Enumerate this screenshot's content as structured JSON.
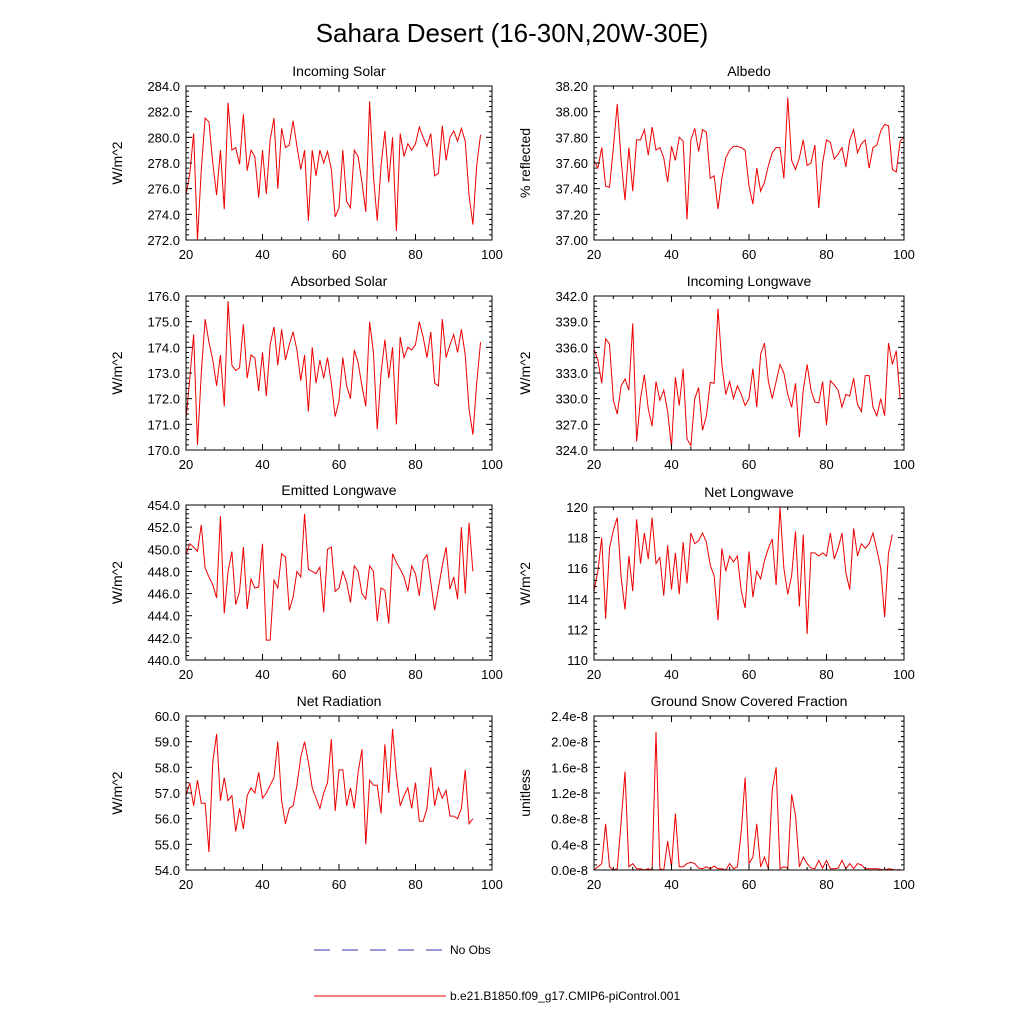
{
  "figure": {
    "title": "Sahara Desert (16-30N,20W-30E)"
  },
  "legend": {
    "entries": [
      {
        "label": "No Obs",
        "color": "#3333aa",
        "dash": "long"
      },
      {
        "label": "b.e21.B1850.f09_g17.CMIP6-piControl.001",
        "color": "#ee0000",
        "dash": "solid"
      }
    ]
  },
  "chart_data": [
    {
      "type": "line",
      "title": "Incoming Solar",
      "ylabel": "W/m^2",
      "xlim": [
        20,
        100
      ],
      "ylim": [
        272,
        284
      ],
      "xticks": [
        20,
        40,
        60,
        80,
        100
      ],
      "yticks": [
        "272.0",
        "274.0",
        "276.0",
        "278.0",
        "280.0",
        "282.0",
        "284.0"
      ],
      "ytick_values": [
        272,
        274,
        276,
        278,
        280,
        282,
        284
      ],
      "x_start": 20,
      "x_step": 1,
      "series": [
        {
          "color": "#ee0000",
          "values": [
            275.5,
            277.2,
            280.3,
            272.0,
            277.5,
            281.5,
            281.2,
            278.0,
            275.5,
            279.0,
            274.4,
            282.7,
            279.0,
            279.2,
            277.9,
            281.8,
            277.4,
            279.0,
            278.5,
            275.3,
            279.0,
            275.6,
            279.8,
            281.5,
            276.0,
            280.7,
            279.2,
            279.4,
            281.3,
            279.3,
            277.5,
            279.0,
            273.5,
            279.0,
            277.0,
            279.0,
            278.0,
            278.9,
            277.5,
            273.8,
            274.5,
            279.0,
            275.0,
            274.5,
            279.0,
            278.5,
            276.5,
            274.2,
            282.8,
            277.0,
            273.5,
            277.8,
            280.5,
            276.5,
            280.0,
            272.7,
            280.3,
            278.5,
            279.5,
            279.0,
            279.5,
            280.8,
            280.0,
            279.3,
            280.3,
            277.0,
            277.2,
            280.9,
            278.2,
            280.0,
            280.5,
            279.7,
            280.7,
            279.7,
            275.5,
            273.2,
            277.8,
            280.2
          ]
        }
      ]
    },
    {
      "type": "line",
      "title": "Albedo",
      "ylabel": "% reflected",
      "xlim": [
        20,
        100
      ],
      "ylim": [
        37.0,
        38.2
      ],
      "xticks": [
        20,
        40,
        60,
        80,
        100
      ],
      "yticks": [
        "37.00",
        "37.20",
        "37.40",
        "37.60",
        "37.80",
        "38.00",
        "38.20"
      ],
      "ytick_values": [
        37.0,
        37.2,
        37.4,
        37.6,
        37.8,
        38.0,
        38.2
      ],
      "x_start": 20,
      "x_step": 1,
      "series": [
        {
          "color": "#ee0000",
          "values": [
            37.62,
            37.56,
            37.72,
            37.42,
            37.41,
            37.72,
            38.06,
            37.62,
            37.31,
            37.72,
            37.38,
            37.78,
            37.78,
            37.86,
            37.66,
            37.88,
            37.7,
            37.72,
            37.64,
            37.45,
            37.73,
            37.62,
            37.8,
            37.77,
            37.16,
            37.78,
            37.87,
            37.69,
            37.86,
            37.84,
            37.48,
            37.5,
            37.24,
            37.48,
            37.64,
            37.7,
            37.73,
            37.73,
            37.72,
            37.7,
            37.42,
            37.28,
            37.56,
            37.38,
            37.45,
            37.58,
            37.68,
            37.72,
            37.72,
            37.48,
            38.11,
            37.62,
            37.55,
            37.64,
            37.78,
            37.58,
            37.6,
            37.74,
            37.25,
            37.6,
            37.78,
            37.76,
            37.63,
            37.67,
            37.72,
            37.57,
            37.78,
            37.86,
            37.68,
            37.75,
            37.78,
            37.56,
            37.72,
            37.74,
            37.85,
            37.9,
            37.89,
            37.55,
            37.53,
            37.77,
            37.8
          ]
        }
      ]
    },
    {
      "type": "line",
      "title": "Absorbed Solar",
      "ylabel": "W/m^2",
      "xlim": [
        20,
        100
      ],
      "ylim": [
        170,
        176
      ],
      "xticks": [
        20,
        40,
        60,
        80,
        100
      ],
      "yticks": [
        "170.0",
        "171.0",
        "172.0",
        "173.0",
        "174.0",
        "175.0",
        "176.0"
      ],
      "ytick_values": [
        170,
        171,
        172,
        173,
        174,
        175,
        176
      ],
      "x_start": 20,
      "x_step": 1,
      "series": [
        {
          "color": "#ee0000",
          "values": [
            171.2,
            172.8,
            174.5,
            170.2,
            173.0,
            175.1,
            174.2,
            173.5,
            172.5,
            173.7,
            171.7,
            175.8,
            173.3,
            173.1,
            173.2,
            174.9,
            172.8,
            173.7,
            173.6,
            172.3,
            173.8,
            172.1,
            174.1,
            174.8,
            173.3,
            174.7,
            173.5,
            174.1,
            174.6,
            173.9,
            172.7,
            173.7,
            171.5,
            174.0,
            172.6,
            173.5,
            172.8,
            173.6,
            172.6,
            171.3,
            171.9,
            173.6,
            172.5,
            172.0,
            173.9,
            173.4,
            172.5,
            171.7,
            175.0,
            173.8,
            170.8,
            173.0,
            174.3,
            172.8,
            174.0,
            171.0,
            174.4,
            173.6,
            174.0,
            173.9,
            174.1,
            175.0,
            174.4,
            173.6,
            174.6,
            172.6,
            172.5,
            175.1,
            173.6,
            174.1,
            174.5,
            173.8,
            174.7,
            173.7,
            171.6,
            170.6,
            172.6,
            174.2
          ]
        }
      ]
    },
    {
      "type": "line",
      "title": "Incoming Longwave",
      "ylabel": "W/m^2",
      "xlim": [
        20,
        100
      ],
      "ylim": [
        324,
        342
      ],
      "xticks": [
        20,
        40,
        60,
        80,
        100
      ],
      "yticks": [
        "324.0",
        "327.0",
        "330.0",
        "333.0",
        "336.0",
        "339.0",
        "342.0"
      ],
      "ytick_values": [
        324,
        327,
        330,
        333,
        336,
        339,
        342
      ],
      "x_start": 20,
      "x_step": 1,
      "series": [
        {
          "color": "#ee0000",
          "values": [
            335.8,
            334.5,
            331.8,
            337.0,
            336.4,
            329.8,
            328.2,
            331.5,
            332.3,
            331.0,
            338.8,
            325.0,
            330.0,
            332.8,
            328.8,
            326.8,
            332.0,
            329.8,
            331.0,
            328.5,
            324.3,
            332.5,
            329.2,
            333.5,
            325.3,
            324.5,
            330.0,
            331.3,
            326.3,
            328.0,
            331.9,
            331.8,
            340.5,
            334.0,
            330.5,
            332.0,
            330.0,
            331.5,
            330.5,
            329.2,
            330.0,
            333.5,
            329.0,
            335.2,
            336.5,
            332.0,
            330.0,
            332.0,
            334.0,
            333.0,
            330.5,
            329.0,
            331.8,
            325.5,
            331.0,
            334.0,
            331.0,
            329.6,
            329.5,
            332.0,
            326.9,
            332.1,
            331.6,
            331.0,
            329.0,
            330.5,
            330.3,
            332.4,
            329.3,
            328.5,
            332.7,
            332.7,
            329.0,
            328.0,
            330.0,
            328.0,
            336.5,
            334.0,
            335.6,
            330.0
          ]
        }
      ]
    },
    {
      "type": "line",
      "title": "Emitted Longwave",
      "ylabel": "W/m^2",
      "xlim": [
        20,
        100
      ],
      "ylim": [
        440,
        454
      ],
      "xticks": [
        20,
        40,
        60,
        80,
        100
      ],
      "yticks": [
        "440.0",
        "442.0",
        "444.0",
        "446.0",
        "448.0",
        "450.0",
        "452.0",
        "454.0"
      ],
      "ytick_values": [
        440,
        442,
        444,
        446,
        448,
        450,
        452,
        454
      ],
      "x_start": 20,
      "x_step": 1,
      "series": [
        {
          "color": "#ee0000",
          "values": [
            449.5,
            450.5,
            450.2,
            449.8,
            452.2,
            448.3,
            447.5,
            446.8,
            445.6,
            453.0,
            444.2,
            448.0,
            449.8,
            445.0,
            446.2,
            450.2,
            444.6,
            447.3,
            446.5,
            446.6,
            450.5,
            441.8,
            441.8,
            447.2,
            446.5,
            449.6,
            449.3,
            444.5,
            445.7,
            448.0,
            447.5,
            453.2,
            448.2,
            448.0,
            447.8,
            448.4,
            444.3,
            450.0,
            450.2,
            446.2,
            446.5,
            448.0,
            447.0,
            445.2,
            448.5,
            448.0,
            446.0,
            445.5,
            448.5,
            448.0,
            443.5,
            446.5,
            446.3,
            443.3,
            449.6,
            448.8,
            448.2,
            447.5,
            446.2,
            448.5,
            447.8,
            445.8,
            449.0,
            449.5,
            447.0,
            444.5,
            446.5,
            448.5,
            450.2,
            446.4,
            447.5,
            445.5,
            452.0,
            446.0,
            452.4,
            448.0
          ]
        }
      ]
    },
    {
      "type": "line",
      "title": "Net Longwave",
      "ylabel": "W/m^2",
      "xlim": [
        20,
        100
      ],
      "ylim": [
        110,
        120
      ],
      "xticks": [
        20,
        40,
        60,
        80,
        100
      ],
      "yticks": [
        "110",
        "112",
        "114",
        "116",
        "118",
        "120"
      ],
      "ytick_values": [
        110,
        112,
        114,
        116,
        118,
        120
      ],
      "x_start": 20,
      "x_step": 1,
      "series": [
        {
          "color": "#ee0000",
          "values": [
            114.5,
            115.8,
            118.0,
            112.7,
            117.3,
            118.5,
            119.3,
            115.4,
            113.3,
            116.8,
            114.5,
            119.2,
            116.3,
            118.3,
            116.6,
            119.3,
            116.3,
            116.7,
            114.2,
            117.5,
            114.6,
            117.0,
            114.3,
            117.7,
            115.0,
            118.3,
            117.6,
            117.8,
            118.3,
            117.7,
            116.2,
            115.5,
            112.6,
            117.3,
            115.8,
            116.8,
            116.4,
            116.8,
            114.5,
            113.4,
            117.1,
            114.1,
            115.8,
            115.3,
            116.5,
            117.3,
            117.9,
            114.9,
            120.0,
            116.0,
            114.3,
            115.5,
            118.4,
            113.5,
            118.2,
            111.7,
            117.0,
            117.0,
            116.8,
            117.0,
            116.8,
            118.3,
            116.6,
            117.3,
            118.3,
            115.7,
            114.6,
            118.6,
            116.8,
            117.6,
            117.3,
            117.6,
            118.3,
            117.2,
            116.0,
            112.8,
            117.0,
            118.2
          ]
        }
      ]
    },
    {
      "type": "line",
      "title": "Net Radiation",
      "ylabel": "W/m^2",
      "xlim": [
        20,
        100
      ],
      "ylim": [
        54,
        60
      ],
      "xticks": [
        20,
        40,
        60,
        80,
        100
      ],
      "yticks": [
        "54.0",
        "55.0",
        "56.0",
        "57.0",
        "58.0",
        "59.0",
        "60.0"
      ],
      "ytick_values": [
        54,
        55,
        56,
        57,
        58,
        59,
        60
      ],
      "x_start": 20,
      "x_step": 1,
      "series": [
        {
          "color": "#ee0000",
          "values": [
            56.9,
            57.4,
            56.5,
            57.5,
            56.6,
            56.6,
            54.7,
            58.2,
            59.3,
            56.7,
            57.6,
            56.7,
            56.9,
            55.5,
            56.4,
            55.6,
            56.9,
            57.2,
            57.0,
            57.8,
            56.8,
            57.0,
            57.3,
            57.6,
            59.0,
            56.7,
            55.8,
            56.4,
            56.5,
            57.3,
            58.4,
            59.0,
            58.2,
            57.2,
            56.8,
            56.4,
            57.0,
            57.4,
            59.1,
            56.3,
            57.9,
            57.9,
            56.5,
            57.2,
            56.4,
            57.8,
            58.7,
            55.0,
            57.5,
            57.3,
            57.3,
            56.2,
            58.9,
            57.0,
            59.5,
            57.7,
            56.5,
            56.9,
            57.2,
            56.4,
            57.4,
            55.9,
            55.9,
            56.4,
            58.0,
            56.5,
            57.2,
            56.8,
            57.1,
            56.1,
            56.1,
            56.0,
            56.4,
            57.9,
            55.8,
            56.0
          ]
        }
      ]
    },
    {
      "type": "line",
      "title": "Ground Snow Covered Fraction",
      "ylabel": "unitless",
      "xlim": [
        20,
        100
      ],
      "ylim": [
        0,
        2.4e-08
      ],
      "xticks": [
        20,
        40,
        60,
        80,
        100
      ],
      "yticks": [
        "0.0e-8",
        "0.4e-8",
        "0.8e-8",
        "1.2e-8",
        "1.6e-8",
        "2.0e-8",
        "2.4e-8"
      ],
      "ytick_values": [
        0,
        4e-09,
        8e-09,
        1.2e-08,
        1.6e-08,
        2e-08,
        2.4e-08
      ],
      "x_start": 20,
      "x_step": 1,
      "series": [
        {
          "color": "#ee0000",
          "values": [
            0,
            5e-10,
            1e-09,
            7.2e-09,
            5e-10,
            0,
            2e-10,
            7.5e-09,
            1.53e-08,
            5e-10,
            1e-09,
            2e-10,
            2e-10,
            0,
            2e-10,
            0,
            2.15e-08,
            2e-10,
            0,
            4.5e-09,
            5e-10,
            8.8e-09,
            5e-10,
            5e-10,
            1e-09,
            1.2e-09,
            1e-09,
            3e-10,
            2e-10,
            5e-10,
            2e-10,
            6e-10,
            2e-10,
            2e-10,
            0,
            1e-09,
            2e-10,
            5e-10,
            6e-09,
            1.44e-08,
            1e-09,
            2e-09,
            7.2e-09,
            5e-10,
            2e-09,
            2e-10,
            1.25e-08,
            1.6e-08,
            2e-10,
            5e-10,
            3e-10,
            1.18e-08,
            8.5e-09,
            5e-10,
            2e-09,
            1e-09,
            3e-10,
            2e-10,
            1.5e-09,
            3e-10,
            1.5e-09,
            2e-10,
            2e-10,
            3e-10,
            1.5e-09,
            2e-10,
            1e-09,
            2e-10,
            1e-09,
            8e-10,
            2e-10,
            2e-10,
            2e-10,
            2e-10,
            1e-10,
            0,
            2e-10,
            1e-10,
            0,
            1e-10
          ]
        }
      ]
    }
  ]
}
